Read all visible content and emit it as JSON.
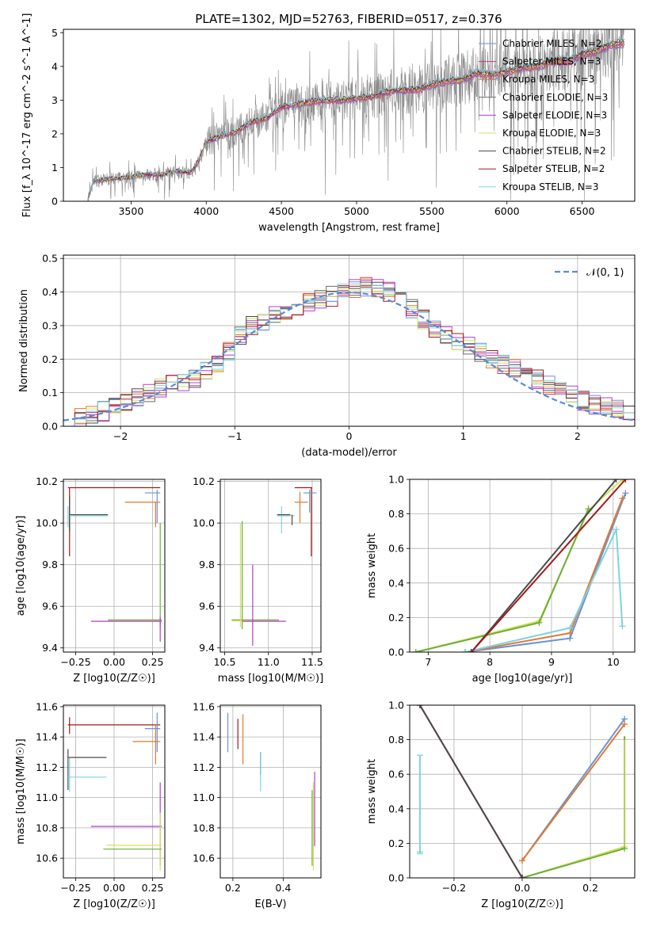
{
  "figure_title": "PLATE=1302, MJD=52763, FIBERID=0517, z=0.376",
  "colors": {
    "Chabrier MILES": "#6a92d8",
    "Salpeter MILES": "#c83c8c",
    "Kroupa MILES": "#e07a2e",
    "Chabrier ELODIE": "#6b6b6b",
    "Salpeter ELODIE": "#b33ccf",
    "Kroupa ELODIE": "#d6e05c",
    "Chabrier STELIB": "#4a4a4a",
    "Salpeter STELIB": "#a11a1a",
    "Kroupa STELIB": "#7fd3de",
    "green": "#6ab035",
    "gaussian": "#5b8ad6"
  },
  "chart_data": [
    {
      "id": "spectrum",
      "type": "line",
      "title": "PLATE=1302, MJD=52763, FIBERID=0517, z=0.376",
      "xlabel": "wavelength [Angstrom, rest frame]",
      "ylabel": "Flux [f_λ 10^-17 erg cm^-2 s^-1 A^-1]",
      "xlim": [
        3050,
        6850
      ],
      "ylim": [
        0,
        5.1
      ],
      "xticks": [
        "3500",
        "4000",
        "4500",
        "5000",
        "5500",
        "6000",
        "6500"
      ],
      "yticks": [
        "0",
        "1",
        "2",
        "3",
        "4",
        "5"
      ],
      "grid": false,
      "legend_position": "top-right",
      "legend": [
        "Chabrier MILES, N_SSP=2",
        "Salpeter MILES, N_SSP=3",
        "Kroupa MILES, N_SSP=3",
        "Chabrier ELODIE, N_SSP=3",
        "Salpeter ELODIE, N_SSP=3",
        "Kroupa ELODIE, N_SSP=3",
        "Chabrier STELIB, N_SSP=2",
        "Salpeter STELIB, N_SSP=2",
        "Kroupa STELIB, N_SSP=3"
      ],
      "model_continuum": {
        "x": [
          3210,
          3250,
          3400,
          3500,
          3600,
          3700,
          3800,
          3900,
          3950,
          4000,
          4100,
          4200,
          4300,
          4400,
          4500,
          4600,
          4700,
          4800,
          4900,
          5000,
          5100,
          5200,
          5300,
          5400,
          5500,
          5600,
          5700,
          5800,
          5900,
          6000,
          6100,
          6200,
          6300,
          6400,
          6500,
          6600,
          6700,
          6780
        ],
        "y": [
          0,
          0.6,
          0.68,
          0.72,
          0.8,
          0.78,
          0.9,
          0.85,
          1.2,
          1.75,
          1.95,
          2.05,
          2.35,
          2.45,
          2.8,
          2.85,
          2.95,
          3.0,
          3.0,
          3.05,
          3.1,
          3.25,
          3.3,
          3.3,
          3.45,
          3.55,
          3.6,
          3.8,
          3.75,
          3.85,
          3.95,
          4.0,
          4.15,
          4.15,
          4.35,
          4.45,
          4.65,
          4.7
        ]
      }
    },
    {
      "id": "residuals",
      "type": "line",
      "xlabel": "(data-model)/error",
      "ylabel": "Normed distribution",
      "xlim": [
        -2.5,
        2.5
      ],
      "ylim": [
        0,
        0.51
      ],
      "xticks": [
        "−2",
        "−1",
        "0",
        "1",
        "2"
      ],
      "yticks": [
        "0.0",
        "0.1",
        "0.2",
        "0.3",
        "0.4",
        "0.5"
      ],
      "grid": true,
      "legend_position": "top-right",
      "legend": [
        "𝒩(0, 1)"
      ],
      "gaussian": {
        "name": "𝒩(0, 1)",
        "mean": 0,
        "sigma": 1
      },
      "histogram_envelope": {
        "x": [
          -2.5,
          -2.3,
          -2.1,
          -1.9,
          -1.7,
          -1.5,
          -1.3,
          -1.1,
          -0.9,
          -0.7,
          -0.5,
          -0.3,
          -0.1,
          0.1,
          0.3,
          0.5,
          0.7,
          0.9,
          1.1,
          1.3,
          1.5,
          1.7,
          1.9,
          2.1,
          2.3,
          2.5
        ],
        "y": [
          0.01,
          0.03,
          0.05,
          0.08,
          0.11,
          0.13,
          0.15,
          0.2,
          0.29,
          0.32,
          0.35,
          0.38,
          0.39,
          0.42,
          0.41,
          0.37,
          0.3,
          0.26,
          0.23,
          0.19,
          0.17,
          0.13,
          0.1,
          0.07,
          0.05,
          0.04
        ]
      }
    },
    {
      "id": "age_vs_Z",
      "type": "scatter",
      "xlabel": "Z [log10(Z/Z☉)]",
      "ylabel": "age  [log10(age/yr)]",
      "xlim": [
        -0.33,
        0.33
      ],
      "ylim": [
        9.38,
        10.21
      ],
      "xticks": [
        "−0.25",
        "0.00",
        "0.25"
      ],
      "yticks": [
        "9.4",
        "9.6",
        "9.8",
        "10.0",
        "10.2"
      ]
    },
    {
      "id": "age_vs_mass",
      "type": "scatter",
      "xlabel": "mass [log10(M/M☉)]",
      "xlim": [
        10.45,
        11.6
      ],
      "ylim": [
        9.38,
        10.21
      ],
      "xticks": [
        "10.5",
        "11.0",
        "11.5"
      ],
      "yticks": [
        "9.4",
        "9.6",
        "9.8",
        "10.0",
        "10.2"
      ]
    },
    {
      "id": "weight_vs_age",
      "type": "line",
      "xlabel": "age  [log10(age/yr)]",
      "ylabel": "mass weight",
      "xlim": [
        6.7,
        10.35
      ],
      "ylim": [
        0,
        1
      ],
      "xticks": [
        "7",
        "8",
        "9",
        "10"
      ],
      "yticks": [
        "0.0",
        "0.2",
        "0.4",
        "0.6",
        "0.8",
        "1.0"
      ],
      "series": [
        {
          "color": "#6a92d8",
          "x": [
            7.6,
            9.3,
            10.2
          ],
          "y": [
            0,
            0.08,
            0.92
          ]
        },
        {
          "color": "#e07a2e",
          "x": [
            7.6,
            9.3,
            10.15
          ],
          "y": [
            0,
            0.11,
            0.89
          ]
        },
        {
          "color": "#7fd3de",
          "x": [
            7.6,
            9.3,
            10.05,
            10.15
          ],
          "y": [
            0,
            0.14,
            0.71,
            0.15
          ]
        },
        {
          "color": "#d6e05c",
          "x": [
            6.8,
            8.8,
            9.6,
            10.15
          ],
          "y": [
            0,
            0.18,
            0.82,
            1.0
          ]
        },
        {
          "color": "#6ab035",
          "x": [
            6.8,
            8.8,
            9.6
          ],
          "y": [
            0,
            0.17,
            0.83
          ]
        },
        {
          "color": "#4a4a4a",
          "x": [
            7.7,
            10.05
          ],
          "y": [
            0,
            1.0
          ]
        },
        {
          "color": "#a11a1a",
          "x": [
            7.7,
            10.2
          ],
          "y": [
            0,
            1.0
          ]
        }
      ]
    },
    {
      "id": "mass_vs_Z",
      "type": "scatter",
      "xlabel": "Z [log10(Z/Z☉)]",
      "ylabel": "mass [log10(M/M☉)]",
      "xlim": [
        -0.33,
        0.33
      ],
      "ylim": [
        10.47,
        11.61
      ],
      "xticks": [
        "−0.25",
        "0.00",
        "0.25"
      ],
      "yticks": [
        "10.6",
        "10.8",
        "11.0",
        "11.2",
        "11.4",
        "11.6"
      ]
    },
    {
      "id": "mass_vs_EBV",
      "type": "scatter",
      "xlabel": "E(B-V)",
      "xlim": [
        0.15,
        0.55
      ],
      "ylim": [
        10.47,
        11.61
      ],
      "xticks": [
        "0.2",
        "0.4"
      ],
      "yticks": [
        "10.6",
        "10.8",
        "11.0",
        "11.2",
        "11.4",
        "11.6"
      ]
    },
    {
      "id": "weight_vs_Z",
      "type": "line",
      "xlabel": "Z [log10(Z/Z☉)]",
      "ylabel": "mass weight",
      "xlim": [
        -0.33,
        0.33
      ],
      "ylim": [
        0,
        1
      ],
      "xticks": [
        "−0.2",
        "0.0",
        "0.2"
      ],
      "yticks": [
        "0.0",
        "0.2",
        "0.4",
        "0.6",
        "0.8",
        "1.0"
      ],
      "series": [
        {
          "color": "#6a92d8",
          "x": [
            0.0,
            0.3
          ],
          "y": [
            0.1,
            0.92
          ]
        },
        {
          "color": "#e07a2e",
          "x": [
            0.0,
            0.3
          ],
          "y": [
            0.1,
            0.89
          ]
        },
        {
          "color": "#d6e05c",
          "x": [
            0.0,
            0.3
          ],
          "y": [
            0,
            0.18
          ]
        },
        {
          "color": "#6ab035",
          "x": [
            0.0,
            0.3
          ],
          "y": [
            0,
            0.17
          ]
        },
        {
          "color": "#a11a1a",
          "x": [
            -0.3,
            0.0
          ],
          "y": [
            1.0,
            0
          ]
        },
        {
          "color": "#4a4a4a",
          "x": [
            -0.3,
            0.0
          ],
          "y": [
            1.0,
            0
          ]
        }
      ]
    }
  ]
}
